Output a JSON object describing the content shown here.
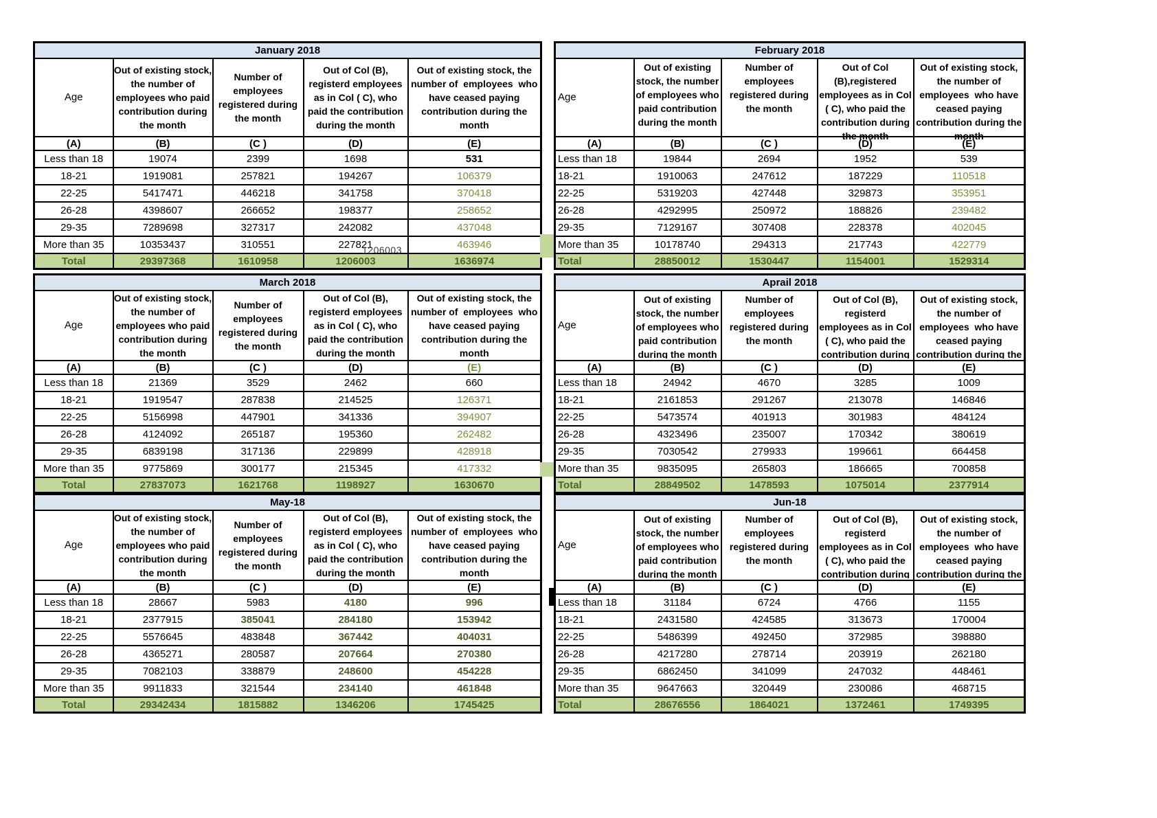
{
  "colors": {
    "title_bg": "#dbe5f1",
    "total_bg": "#c3d69b",
    "green_text": "#76933c",
    "dark_green_text": "#4f6228",
    "border": "#000000",
    "page_bg": "#ffffff"
  },
  "artifacts": {
    "overflow_text": "1206003"
  },
  "months": [
    {
      "title": "January 2018",
      "age_label": "Age",
      "headers": {
        "b": "Out of existing stock,\nthe number of\nemployees who paid\ncontribution during\nthe month",
        "c": "Number of\nemployees\nregistered during\nthe month",
        "d": "Out of Col (B),\nregisterd employees\nas in Col ( C), who\npaid the contribution\nduring the month",
        "e": "Out of existing stock, the\nnumber of  employees  who\nhave ceased paying\ncontribution during the\nmonth"
      },
      "col_labels": [
        "(A)",
        "(B)",
        "(C )",
        "(D)",
        "(E)"
      ],
      "col_label_styles": [
        "",
        "",
        "",
        "",
        ""
      ],
      "rows": [
        {
          "cells": [
            "Less than 18",
            "19074",
            "2399",
            "1698",
            "531"
          ],
          "styles": [
            "",
            "",
            "",
            "",
            "b"
          ]
        },
        {
          "cells": [
            "18-21",
            "1919081",
            "257821",
            "194267",
            "106379"
          ],
          "styles": [
            "",
            "",
            "",
            "",
            "g"
          ]
        },
        {
          "cells": [
            "22-25",
            "5417471",
            "446218",
            "341758",
            "370418"
          ],
          "styles": [
            "",
            "",
            "",
            "",
            "g"
          ]
        },
        {
          "cells": [
            "26-28",
            "4398607",
            "266652",
            "198377",
            "258652"
          ],
          "styles": [
            "",
            "",
            "",
            "",
            "g"
          ]
        },
        {
          "cells": [
            "29-35",
            "7289698",
            "327317",
            "242082",
            "437048"
          ],
          "styles": [
            "",
            "",
            "",
            "",
            "g"
          ]
        },
        {
          "cells": [
            "More than 35",
            "10353437",
            "310551",
            "227821",
            "463946"
          ],
          "styles": [
            "",
            "",
            "",
            "",
            "g"
          ]
        }
      ],
      "total": {
        "cells": [
          "Total",
          "29397368",
          "1610958",
          "1206003",
          "1636974"
        ]
      }
    },
    {
      "title": "February 2018",
      "age_label": "Age",
      "headers": {
        "b": "Out of existing\nstock, the number\nof employees who\npaid contribution\nduring the month",
        "c": "Number of\nemployees\nregistered during\nthe month",
        "d": "Out of Col\n(B),registered\nemployees as in Col\n( C), who paid the\ncontribution during\nthe month",
        "e": "Out of existing stock,\nthe number of\nemployees  who have\nceased paying\ncontribution during the\nmonth"
      },
      "col_labels": [
        "(A)",
        "(B)",
        "(C )",
        "(D)",
        "(E)"
      ],
      "col_label_styles": [
        "",
        "",
        "",
        "",
        ""
      ],
      "rows": [
        {
          "cells": [
            "Less than 18",
            "19844",
            "2694",
            "1952",
            "539"
          ],
          "styles": [
            "",
            "",
            "",
            "",
            ""
          ]
        },
        {
          "cells": [
            "18-21",
            "1910063",
            "247612",
            "187229",
            "110518"
          ],
          "styles": [
            "",
            "",
            "",
            "",
            "g"
          ]
        },
        {
          "cells": [
            "22-25",
            "5319203",
            "427448",
            "329873",
            "353951"
          ],
          "styles": [
            "",
            "",
            "",
            "",
            "g"
          ]
        },
        {
          "cells": [
            "26-28",
            "4292995",
            "250972",
            "188826",
            "239482"
          ],
          "styles": [
            "",
            "",
            "",
            "",
            "g"
          ]
        },
        {
          "cells": [
            "29-35",
            "7129167",
            "307408",
            "228378",
            "402045"
          ],
          "styles": [
            "",
            "",
            "",
            "",
            "g"
          ]
        },
        {
          "cells": [
            "More than 35",
            "10178740",
            "294313",
            "217743",
            "422779"
          ],
          "styles": [
            "",
            "",
            "",
            "",
            "g"
          ]
        }
      ],
      "total": {
        "cells": [
          "Total",
          "28850012",
          "1530447",
          "1154001",
          "1529314"
        ]
      }
    },
    {
      "title": "March 2018",
      "age_label": "Age",
      "headers": {
        "b": "Out of existing stock,\nthe number of\nemployees who paid\ncontribution during\nthe month",
        "c": "Number of\nemployees\nregistered during\nthe month",
        "d": "Out of Col (B),\nregisterd employees\nas in Col ( C), who\npaid the contribution\nduring the month",
        "e": "Out of existing stock, the\nnumber of  employees  who\nhave ceased paying\ncontribution during the\nmonth"
      },
      "col_labels": [
        "(A)",
        "(B)",
        "(C )",
        "(D)",
        "(E)"
      ],
      "col_label_styles": [
        "",
        "",
        "",
        "",
        "g"
      ],
      "rows": [
        {
          "cells": [
            "Less than 18",
            "21369",
            "3529",
            "2462",
            "660"
          ],
          "styles": [
            "",
            "",
            "",
            "",
            ""
          ]
        },
        {
          "cells": [
            "18-21",
            "1919547",
            "287838",
            "214525",
            "126371"
          ],
          "styles": [
            "",
            "",
            "",
            "",
            "g"
          ]
        },
        {
          "cells": [
            "22-25",
            "5156998",
            "447901",
            "341336",
            "394907"
          ],
          "styles": [
            "",
            "",
            "",
            "",
            "g"
          ]
        },
        {
          "cells": [
            "26-28",
            "4124092",
            "265187",
            "195360",
            "262482"
          ],
          "styles": [
            "",
            "",
            "",
            "",
            "g"
          ]
        },
        {
          "cells": [
            "29-35",
            "6839198",
            "317136",
            "229899",
            "428918"
          ],
          "styles": [
            "",
            "",
            "",
            "",
            "g"
          ]
        },
        {
          "cells": [
            "More than 35",
            "9775869",
            "300177",
            "215345",
            "417332"
          ],
          "styles": [
            "",
            "",
            "",
            "",
            "g"
          ]
        }
      ],
      "total": {
        "cells": [
          "Total",
          "27837073",
          "1621768",
          "1198927",
          "1630670"
        ]
      }
    },
    {
      "title": "Aprail 2018",
      "age_label": "Age",
      "headers": {
        "b": "Out of existing\nstock, the number\nof employees who\npaid contribution\nduring the month",
        "c": "Number of\nemployees\nregistered during\nthe month",
        "d": "Out of Col (B),\nregisterd\nemployees as in Col\n( C), who paid the\ncontribution during\nthe month",
        "e": "Out of existing stock,\nthe number of\nemployees  who have\nceased paying\ncontribution during the\nmonth"
      },
      "col_labels": [
        "(A)",
        "(B)",
        "(C )",
        "(D)",
        "(E)"
      ],
      "col_label_styles": [
        "",
        "",
        "",
        "",
        ""
      ],
      "rows": [
        {
          "cells": [
            "Less than 18",
            "24942",
            "4670",
            "3285",
            "1009"
          ],
          "styles": [
            "",
            "",
            "",
            "",
            ""
          ]
        },
        {
          "cells": [
            "18-21",
            "2161853",
            "291267",
            "213078",
            "146846"
          ],
          "styles": [
            "",
            "",
            "",
            "",
            ""
          ]
        },
        {
          "cells": [
            "22-25",
            "5473574",
            "401913",
            "301983",
            "484124"
          ],
          "styles": [
            "",
            "",
            "",
            "",
            ""
          ]
        },
        {
          "cells": [
            "26-28",
            "4323496",
            "235007",
            "170342",
            "380619"
          ],
          "styles": [
            "",
            "",
            "",
            "",
            ""
          ]
        },
        {
          "cells": [
            "29-35",
            "7030542",
            "279933",
            "199661",
            "664458"
          ],
          "styles": [
            "",
            "",
            "",
            "",
            ""
          ]
        },
        {
          "cells": [
            "More than 35",
            "9835095",
            "265803",
            "186665",
            "700858"
          ],
          "styles": [
            "",
            "",
            "",
            "",
            ""
          ]
        }
      ],
      "total": {
        "cells": [
          "Total",
          "28849502",
          "1478593",
          "1075014",
          "2377914"
        ]
      }
    },
    {
      "title": "May-18",
      "age_label": "Age",
      "headers": {
        "b": "Out of existing stock,\nthe number of\nemployees who paid\ncontribution during\nthe month",
        "c": "Number of\nemployees\nregistered during\nthe month",
        "d": "Out of Col (B),\nregisterd employees\nas in Col ( C), who\npaid the contribution\nduring the month",
        "e": "Out of existing stock, the\nnumber of  employees  who\nhave ceased paying\ncontribution during the\nmonth"
      },
      "col_labels": [
        "(A)",
        "(B)",
        "(C )",
        "(D)",
        "(E)"
      ],
      "col_label_styles": [
        "",
        "",
        "",
        "",
        ""
      ],
      "rows": [
        {
          "cells": [
            "Less than 18",
            "28667",
            "5983",
            "4180",
            "996"
          ],
          "styles": [
            "",
            "",
            "",
            "gb",
            "gb"
          ]
        },
        {
          "cells": [
            "18-21",
            "2377915",
            "385041",
            "284180",
            "153942"
          ],
          "styles": [
            "",
            "",
            "gb",
            "gb",
            "gb"
          ]
        },
        {
          "cells": [
            "22-25",
            "5576645",
            "483848",
            "367442",
            "404031"
          ],
          "styles": [
            "",
            "",
            "",
            "gb",
            "gb"
          ]
        },
        {
          "cells": [
            "26-28",
            "4365271",
            "280587",
            "207664",
            "270380"
          ],
          "styles": [
            "",
            "",
            "",
            "gb",
            "gb"
          ]
        },
        {
          "cells": [
            "29-35",
            "7082103",
            "338879",
            "248600",
            "454228"
          ],
          "styles": [
            "",
            "",
            "",
            "gb",
            "gb"
          ]
        },
        {
          "cells": [
            "More than 35",
            "9911833",
            "321544",
            "234140",
            "461848"
          ],
          "styles": [
            "",
            "",
            "",
            "gb",
            "gb"
          ]
        }
      ],
      "total": {
        "cells": [
          "Total",
          "29342434",
          "1815882",
          "1346206",
          "1745425"
        ]
      }
    },
    {
      "title": "Jun-18",
      "age_label": "Age",
      "headers": {
        "b": "Out of existing\nstock, the number\nof employees who\npaid contribution\nduring the month",
        "c": "Number of\nemployees\nregistered during\nthe month",
        "d": "Out of Col (B),\nregisterd\nemployees as in Col\n( C), who paid the\ncontribution during\nthe month",
        "e": "Out of existing stock,\nthe number of\nemployees  who have\nceased paying\ncontribution during the\nmonth"
      },
      "col_labels": [
        "(A)",
        "(B)",
        "(C )",
        "(D)",
        "(E)"
      ],
      "col_label_styles": [
        "",
        "",
        "",
        "",
        ""
      ],
      "rows": [
        {
          "cells": [
            "Less than 18",
            "31184",
            "6724",
            "4766",
            "1155"
          ],
          "styles": [
            "",
            "",
            "",
            "",
            ""
          ]
        },
        {
          "cells": [
            "18-21",
            "2431580",
            "424585",
            "313673",
            "170004"
          ],
          "styles": [
            "",
            "",
            "",
            "",
            ""
          ]
        },
        {
          "cells": [
            "22-25",
            "5486399",
            "492450",
            "372985",
            "398880"
          ],
          "styles": [
            "",
            "",
            "",
            "",
            ""
          ]
        },
        {
          "cells": [
            "26-28",
            "4217280",
            "278714",
            "203919",
            "262180"
          ],
          "styles": [
            "",
            "",
            "",
            "",
            ""
          ]
        },
        {
          "cells": [
            "29-35",
            "6862450",
            "341099",
            "247032",
            "448461"
          ],
          "styles": [
            "",
            "",
            "",
            "",
            ""
          ]
        },
        {
          "cells": [
            "More than 35",
            "9647663",
            "320449",
            "230086",
            "468715"
          ],
          "styles": [
            "",
            "",
            "",
            "",
            ""
          ]
        }
      ],
      "total": {
        "cells": [
          "Total",
          "28676556",
          "1864021",
          "1372461",
          "1749395"
        ]
      }
    }
  ]
}
